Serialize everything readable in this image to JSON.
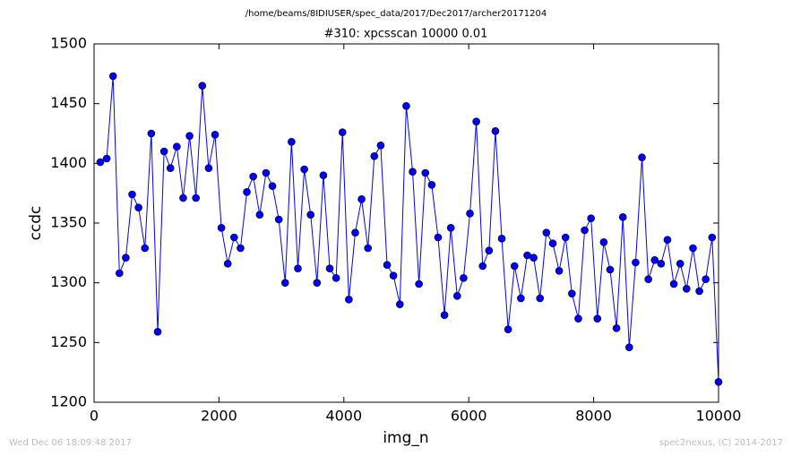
{
  "chart_data": {
    "type": "line",
    "suptitle": "/home/beams/8IDIUSER/spec_data/2017/Dec2017/archer20171204",
    "title": "#310: xpcsscan 10000 0.01",
    "xlabel": "img_n",
    "ylabel": "ccdc",
    "footer_left": "Wed Dec 06 18:09:48 2017",
    "footer_right": "spec2nexus, (C) 2014-2017",
    "color": "#0000ff",
    "x": [
      100,
      202,
      304,
      406,
      508,
      610,
      712,
      814,
      916,
      1019,
      1121,
      1223,
      1325,
      1427,
      1529,
      1631,
      1733,
      1835,
      1937,
      2039,
      2141,
      2243,
      2345,
      2447,
      2549,
      2652,
      2754,
      2856,
      2958,
      3060,
      3162,
      3264,
      3366,
      3468,
      3570,
      3672,
      3774,
      3876,
      3978,
      4080,
      4182,
      4284,
      4386,
      4488,
      4590,
      4692,
      4794,
      4897,
      4999,
      5101,
      5203,
      5305,
      5407,
      5509,
      5611,
      5713,
      5815,
      5917,
      6019,
      6121,
      6223,
      6325,
      6427,
      6529,
      6631,
      6733,
      6835,
      6937,
      7039,
      7141,
      7243,
      7346,
      7448,
      7550,
      7652,
      7754,
      7856,
      7958,
      8060,
      8162,
      8264,
      8366,
      8468,
      8570,
      8672,
      8774,
      8876,
      8978,
      9080,
      9182,
      9284,
      9386,
      9488,
      9591,
      9693,
      9795,
      9897,
      10000
    ],
    "values": [
      1401,
      1404,
      1473,
      1308,
      1321,
      1374,
      1363,
      1329,
      1425,
      1259,
      1410,
      1396,
      1414,
      1371,
      1423,
      1371,
      1465,
      1396,
      1424,
      1346,
      1316,
      1338,
      1329,
      1376,
      1389,
      1357,
      1392,
      1381,
      1353,
      1300,
      1418,
      1312,
      1395,
      1357,
      1300,
      1390,
      1312,
      1304,
      1426,
      1286,
      1342,
      1370,
      1329,
      1406,
      1415,
      1315,
      1306,
      1282,
      1448,
      1393,
      1299,
      1392,
      1382,
      1338,
      1273,
      1346,
      1289,
      1304,
      1358,
      1435,
      1314,
      1327,
      1427,
      1337,
      1261,
      1314,
      1287,
      1323,
      1321,
      1287,
      1342,
      1333,
      1310,
      1338,
      1291,
      1270,
      1344,
      1354,
      1270,
      1334,
      1311,
      1262,
      1355,
      1246,
      1317,
      1405,
      1303,
      1319,
      1316,
      1336,
      1299,
      1316,
      1295,
      1329,
      1293,
      1303,
      1338,
      1217
    ],
    "xlim": [
      0,
      10000
    ],
    "xticks": [
      0,
      2000,
      4000,
      6000,
      8000,
      10000
    ],
    "ylim": [
      1200,
      1500
    ],
    "yticks": [
      1200,
      1250,
      1300,
      1350,
      1400,
      1450,
      1500
    ]
  }
}
